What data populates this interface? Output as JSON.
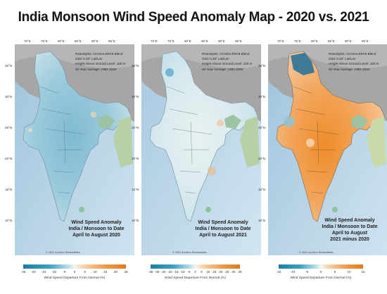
{
  "title": "India Monsoon Wind Speed Anomaly Map - 2020 vs. 2021",
  "lon_ticks": [
    "70°E",
    "75°E",
    "80°E",
    "85°E",
    "90°E",
    "95°E"
  ],
  "lat_ticks": [
    "35°N",
    "30°N",
    "25°N",
    "20°N",
    "15°N",
    "10°N"
  ],
  "info_lines": [
    "Reanalysis: ArcVera ERA5 Blend",
    "Grid: 0.25° Lat/Lon",
    "Height Above Ground Level: 100 m",
    "40-Year Average: 1981-2020"
  ],
  "copyright": "© 2021 ArcVera Renewables",
  "panels": [
    {
      "anomaly": [
        "Wind Speed Anomaly",
        "India / Monsoon to Date",
        "April to August 2020"
      ],
      "tone": "blue"
    },
    {
      "anomaly": [
        "Wind Speed Anomaly",
        "India / Monsoon to Date",
        "April to August 2021"
      ],
      "tone": "pale"
    },
    {
      "anomaly": [
        "Wind Speed Anomaly",
        "India / Monsoon to Date",
        "April to August",
        "2021 minus 2020"
      ],
      "tone": "orange"
    }
  ],
  "legends": [
    {
      "labels": [
        "-25",
        "-20",
        "-15",
        "-10",
        "-5",
        "0",
        "5",
        "10",
        "15",
        "20",
        "25"
      ],
      "title": "Wind Speed Departure From Normal (%)"
    },
    {
      "labels": [
        "-35",
        "-30",
        "-25",
        "-20",
        "-15",
        "-10",
        "-5",
        "0",
        "5",
        "10",
        "15",
        "20",
        "25",
        "30",
        "35"
      ],
      "title": "Wind Speed Departure From Normal (%)"
    },
    {
      "labels": [
        "-15",
        "-10",
        "-5",
        "0",
        "5",
        "10",
        "15"
      ],
      "title": "Wind Speed Departure From Normal (%)"
    }
  ],
  "colors": {
    "negative": "#2a93b8",
    "neutral": "#f4f4f0",
    "positive": "#ee8c2a",
    "ocean": "#b9d6ea",
    "terrain": "#a6a6a6"
  }
}
